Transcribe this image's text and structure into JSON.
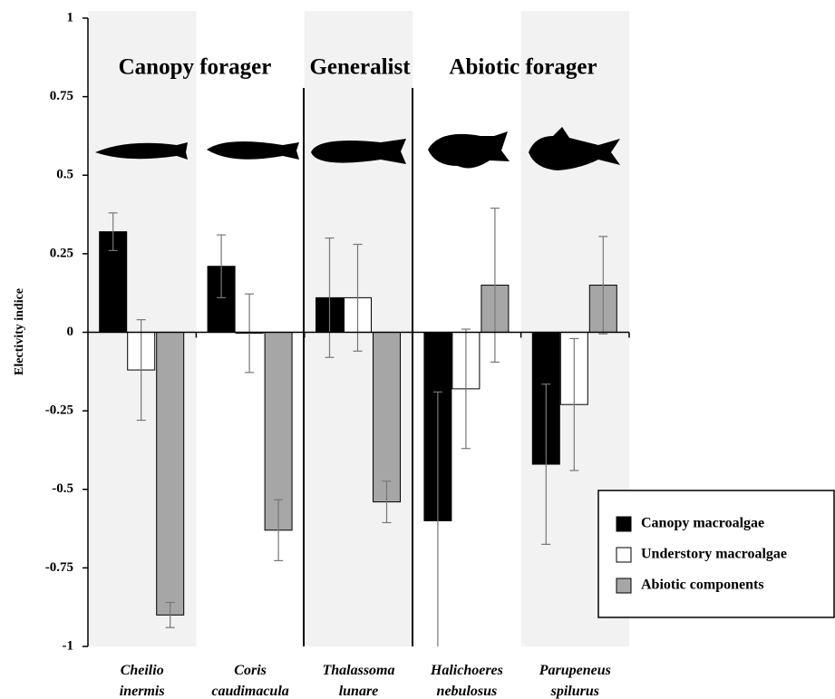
{
  "chart_data": {
    "type": "bar",
    "y_label": "Electivity indice",
    "categories": [
      "Cheilio inermis",
      "Coris caudimacula",
      "Thalassoma lunare",
      "Halichoeres nebulosus",
      "Parupeneus spilurus"
    ],
    "series": [
      {
        "name": "Canopy macroalgae",
        "color": "#000000",
        "values": [
          0.32,
          0.21,
          0.11,
          -0.6,
          -0.42
        ],
        "errors": [
          0.06,
          0.1,
          0.19,
          0.41,
          0.255
        ]
      },
      {
        "name": "Understory macroalgae",
        "color": "#ffffff",
        "values": [
          -0.12,
          -0.003,
          0.11,
          -0.18,
          -0.23
        ],
        "errors": [
          0.16,
          0.125,
          0.17,
          0.19,
          0.21
        ]
      },
      {
        "name": "Abiotic components",
        "color": "#a6a6a6",
        "values": [
          -0.9,
          -0.63,
          -0.54,
          0.15,
          0.15
        ],
        "errors": [
          0.04,
          0.097,
          0.066,
          0.245,
          0.155
        ]
      }
    ],
    "groups": [
      "Canopy forager",
      "Generalist",
      "Abiotic forager"
    ],
    "ylim": [
      -1,
      1
    ],
    "yticks": [
      1,
      0.75,
      0.5,
      0.25,
      0,
      -0.25,
      -0.5,
      -0.75,
      -1
    ],
    "legend": "lower right"
  }
}
